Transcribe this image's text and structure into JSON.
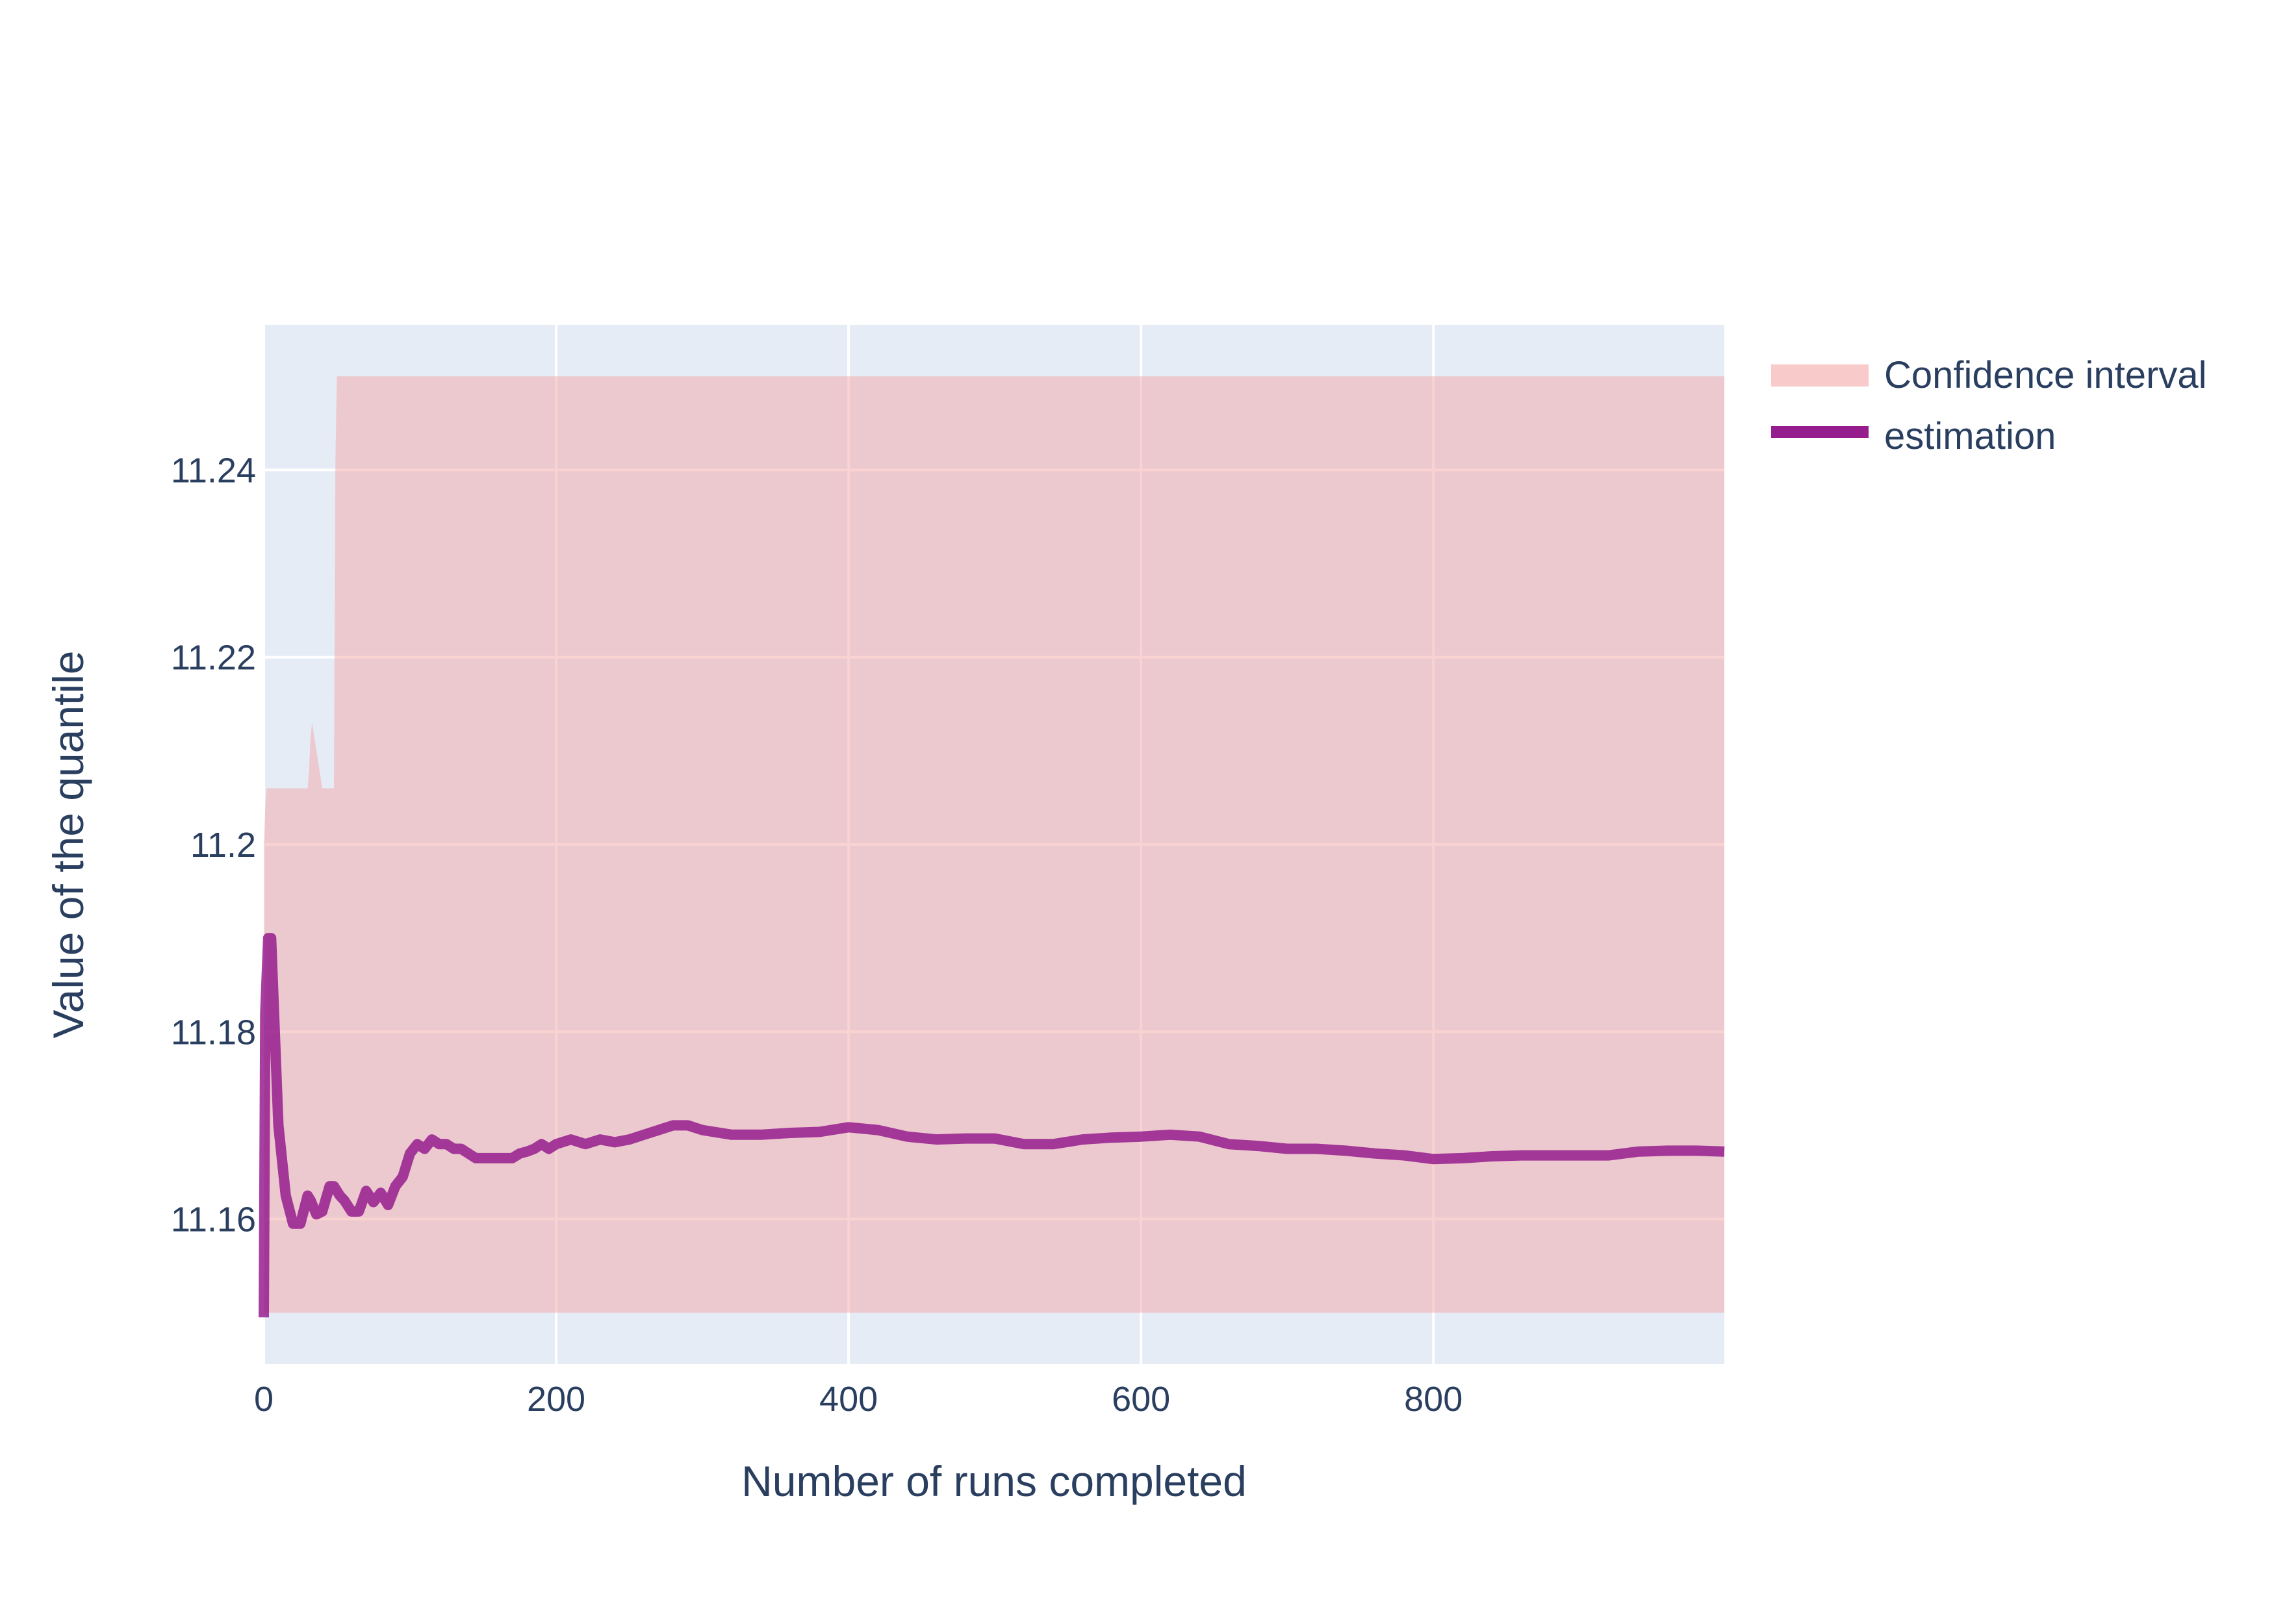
{
  "chart_data": {
    "type": "line",
    "title": "",
    "xlabel": "Number of runs completed",
    "ylabel": "Value of the quantile",
    "xlim": [
      0,
      999
    ],
    "ylim": [
      11.1445,
      11.2555
    ],
    "x_ticks": [
      0,
      200,
      400,
      600,
      800
    ],
    "x_tick_labels": [
      "0",
      "200",
      "400",
      "600",
      "800"
    ],
    "y_ticks": [
      11.16,
      11.18,
      11.2,
      11.22,
      11.24
    ],
    "y_tick_labels": [
      "11.16",
      "11.18",
      "11.2",
      "11.22",
      "11.24"
    ],
    "grid": true,
    "legend_position": "top-right",
    "series": [
      {
        "name": "Confidence interval",
        "kind": "band",
        "color": "#f4a6a6",
        "x": [
          0,
          1,
          2,
          30,
          31,
          32,
          33,
          34,
          35,
          36,
          37,
          38,
          39,
          40,
          41,
          42,
          43,
          44,
          45,
          46,
          47,
          48,
          49,
          50,
          999
        ],
        "upper": [
          11.2,
          11.204,
          11.206,
          11.206,
          11.208,
          11.2115,
          11.213,
          11.212,
          11.211,
          11.21,
          11.209,
          11.208,
          11.207,
          11.206,
          11.206,
          11.206,
          11.206,
          11.206,
          11.206,
          11.206,
          11.206,
          11.206,
          11.241,
          11.25,
          11.25
        ],
        "lower": [
          11.15,
          11.15,
          11.15,
          11.15,
          11.15,
          11.15,
          11.15,
          11.15,
          11.15,
          11.15,
          11.15,
          11.15,
          11.15,
          11.15,
          11.15,
          11.15,
          11.15,
          11.15,
          11.15,
          11.15,
          11.15,
          11.15,
          11.15,
          11.15,
          11.15
        ]
      },
      {
        "name": "estimation",
        "kind": "line",
        "color": "#961d8e",
        "x": [
          0,
          1,
          3,
          5,
          10,
          15,
          20,
          25,
          30,
          32,
          36,
          40,
          45,
          48,
          52,
          55,
          60,
          65,
          70,
          75,
          80,
          85,
          90,
          95,
          100,
          105,
          110,
          115,
          120,
          125,
          130,
          135,
          140,
          145,
          150,
          155,
          160,
          165,
          170,
          175,
          180,
          185,
          190,
          195,
          200,
          210,
          220,
          230,
          240,
          250,
          260,
          270,
          280,
          290,
          300,
          320,
          340,
          360,
          380,
          400,
          420,
          440,
          460,
          480,
          500,
          520,
          540,
          560,
          580,
          600,
          620,
          640,
          660,
          680,
          700,
          720,
          740,
          760,
          780,
          800,
          820,
          840,
          860,
          880,
          900,
          920,
          940,
          960,
          980,
          999
        ],
        "y": [
          11.1495,
          11.182,
          11.19,
          11.19,
          11.17,
          11.1625,
          11.1595,
          11.1595,
          11.1625,
          11.162,
          11.1605,
          11.1608,
          11.1635,
          11.1635,
          11.1625,
          11.162,
          11.1608,
          11.1608,
          11.163,
          11.1618,
          11.1628,
          11.1615,
          11.1635,
          11.1645,
          11.167,
          11.168,
          11.1675,
          11.1685,
          11.168,
          11.168,
          11.1675,
          11.1675,
          11.167,
          11.1665,
          11.1665,
          11.1665,
          11.1665,
          11.1665,
          11.1665,
          11.167,
          11.1672,
          11.1675,
          11.168,
          11.1675,
          11.168,
          11.1685,
          11.168,
          11.1685,
          11.1682,
          11.1685,
          11.169,
          11.1695,
          11.17,
          11.17,
          11.1695,
          11.169,
          11.169,
          11.1692,
          11.1693,
          11.1698,
          11.1695,
          11.1688,
          11.1685,
          11.1686,
          11.1686,
          11.168,
          11.168,
          11.1685,
          11.1687,
          11.1688,
          11.169,
          11.1688,
          11.168,
          11.1678,
          11.1675,
          11.1675,
          11.1673,
          11.167,
          11.1668,
          11.1664,
          11.1665,
          11.1667,
          11.1668,
          11.1668,
          11.1668,
          11.1668,
          11.1672,
          11.1673,
          11.1673,
          11.1672
        ]
      }
    ]
  }
}
